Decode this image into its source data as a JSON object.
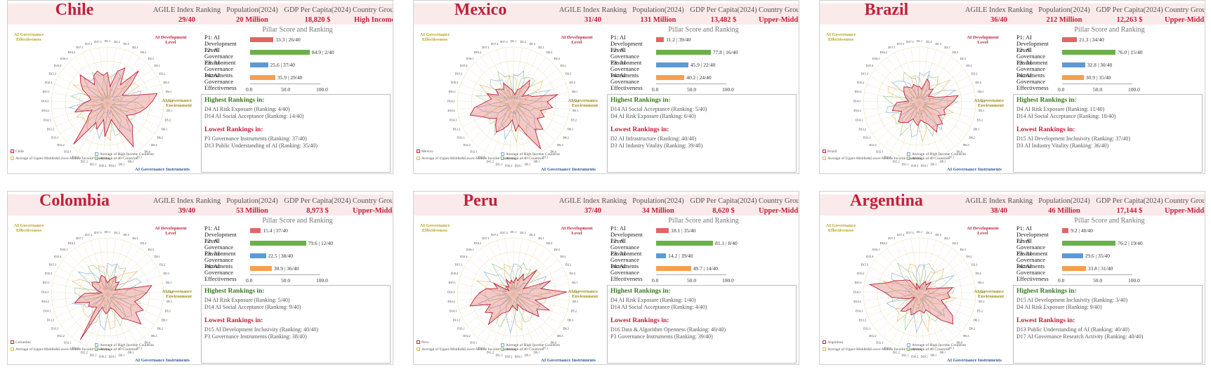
{
  "header_labels": [
    "AGILE Index Ranking",
    "Population(2024)",
    "GDP Per Capita(2024)",
    "Country Group"
  ],
  "pillar_title": "Pillar Score and Ranking",
  "pillar_labels": [
    "P1: AI Development Level",
    "P2: AI Governance Environment",
    "P3: AI Governance Instruments",
    "P4: AI Governance Effectiveness"
  ],
  "pillar_colors": [
    "#e06666",
    "#6ab04c",
    "#5b9bd5",
    "#f6a04d"
  ],
  "axis_ticks": [
    "0.0",
    "50.0",
    "100.0"
  ],
  "highest_heading": "Highest Rankings in:",
  "lowest_heading": "Lowest Rankings in:",
  "radar_quadrants": [
    "AI Development Level",
    "AI Governance Environment",
    "AI Governance Instruments",
    "AI Governance Effectiveness"
  ],
  "radar_axes": [
    "D1.1",
    "D1.2",
    "D1.3",
    "D2.1",
    "D2.2",
    "D2.3",
    "D3.1",
    "D3.2",
    "D3.3",
    "D4.1",
    "D4.2",
    "D5.1",
    "D5.2",
    "D6.1",
    "D6.2",
    "D6.3",
    "D6.4",
    "D7.1",
    "D8.1",
    "D9.1",
    "D10.1",
    "D10.2",
    "D11.1",
    "D11.2",
    "D11.3",
    "D12.1",
    "D12.2",
    "D13.1",
    "D13.2",
    "D14.1",
    "D14.2",
    "D14.3",
    "D15.1",
    "D15.2",
    "D15.3",
    "D15.4",
    "D16.1",
    "D16.2",
    "D17.1",
    "D17.2",
    "D17.3"
  ],
  "legend_labels": [
    "Average of High Income Countries",
    "Average of Upper-Middle&Lower-Middle Income Countries",
    "Average of 40 Countries"
  ],
  "chart_data": [
    {
      "type": "radar",
      "country": "Chile",
      "agile_rank": "29/40",
      "population": "20 Million",
      "gdp": "18,820 $",
      "group": "High Income",
      "pillars": [
        {
          "score": 33.3,
          "text": "33.3 | 26/40"
        },
        {
          "score": 84.9,
          "text": "84.9 | 2/40"
        },
        {
          "score": 25.6,
          "text": "25.6 | 37/40"
        },
        {
          "score": 35.9,
          "text": "35.9 | 29/40"
        }
      ],
      "highest": [
        "D4 AI Risk Exposure (Ranking: 4/40)",
        "D14 AI Social Acceptance (Ranking: 14/40)"
      ],
      "lowest": [
        "P3 Governance Instruments (Ranking: 37/40)",
        "D13 Public Understanding of AI (Ranking: 35/40)"
      ],
      "series": [
        {
          "values": [
            0.55,
            0.3,
            0.6,
            0.7,
            0.4,
            0.8,
            0.5,
            0.3,
            0.4,
            0.9,
            0.8,
            0.7,
            0.6,
            0.5,
            0.4,
            0.6,
            0.7,
            0.9,
            0.5,
            0.3,
            0.4,
            0.6,
            0.3,
            0.5,
            0.4,
            0.95,
            0.5,
            0.4,
            0.3,
            0.6,
            0.5,
            0.4,
            0.3,
            0.35,
            0.5,
            0.6,
            0.7,
            0.4,
            0.55,
            0.6,
            0.5
          ]
        }
      ]
    },
    {
      "type": "radar",
      "country": "Mexico",
      "agile_rank": "31/40",
      "population": "131 Million",
      "gdp": "13,482 $",
      "group": "Upper-Middle Income",
      "pillars": [
        {
          "score": 11.2,
          "text": "11.2 | 39/40"
        },
        {
          "score": 77.8,
          "text": "77.8 | 16/40"
        },
        {
          "score": 45.9,
          "text": "45.9 | 22/40"
        },
        {
          "score": 40.2,
          "text": "40.2 | 24/40"
        }
      ],
      "highest": [
        "D14 AI Social Acceptance (Ranking: 5/40)",
        "D4 AI Risk Exposure (Ranking: 6/40)"
      ],
      "lowest": [
        "D2 AI Infrastructure (Ranking: 40/40)",
        "D3 AI Industry Vitality (Ranking: 39/40)"
      ],
      "series": [
        {
          "values": [
            0.2,
            0.15,
            0.25,
            0.3,
            0.5,
            0.4,
            0.2,
            0.3,
            0.35,
            0.8,
            0.6,
            0.7,
            0.5,
            0.6,
            0.5,
            0.7,
            0.6,
            0.95,
            0.6,
            0.4,
            0.5,
            0.3,
            0.4,
            0.5,
            0.6,
            0.5,
            0.4,
            0.5,
            0.6,
            0.8,
            0.7,
            0.5,
            0.4,
            0.5,
            0.3,
            0.4,
            0.35,
            0.3,
            0.4,
            0.3,
            0.25
          ]
        }
      ]
    },
    {
      "type": "radar",
      "country": "Brazil",
      "agile_rank": "36/40",
      "population": "212 Million",
      "gdp": "12,263 $",
      "group": "Upper-Middle Income",
      "pillars": [
        {
          "score": 21.3,
          "text": "21.3 | 34/40"
        },
        {
          "score": 76.0,
          "text": "76.0 | 15/40"
        },
        {
          "score": 32.8,
          "text": "32.8 | 30/40"
        },
        {
          "score": 30.9,
          "text": "30.9 | 35/40"
        }
      ],
      "highest": [
        "D4 AI Risk Exposure (Ranking: 11/40)",
        "D14 AI Social Acceptance (Ranking: 18/40)"
      ],
      "lowest": [
        "D15 AI Development Inclusivity (Ranking: 37/40)",
        "D3 AI Industry Vitality (Ranking: 36/40)"
      ],
      "series": [
        {
          "values": [
            0.3,
            0.25,
            0.45,
            0.4,
            0.3,
            0.35,
            0.2,
            0.25,
            0.3,
            0.7,
            0.6,
            0.5,
            0.45,
            0.5,
            0.4,
            0.55,
            0.5,
            0.6,
            0.4,
            0.35,
            0.3,
            0.4,
            0.35,
            0.3,
            0.4,
            0.45,
            0.5,
            0.4,
            0.35,
            0.5,
            0.45,
            0.4,
            0.2,
            0.25,
            0.3,
            0.35,
            0.4,
            0.35,
            0.3,
            0.35,
            0.3
          ]
        }
      ]
    },
    {
      "type": "radar",
      "country": "Colombia",
      "agile_rank": "39/40",
      "population": "53 Million",
      "gdp": "8,973 $",
      "group": "Upper-Middle Income",
      "pillars": [
        {
          "score": 15.4,
          "text": "15.4 | 37/40"
        },
        {
          "score": 79.6,
          "text": "79.6 | 12/40"
        },
        {
          "score": 22.5,
          "text": "22.5 | 38/40"
        },
        {
          "score": 30.9,
          "text": "30.9 | 36/40"
        }
      ],
      "highest": [
        "D4 AI Risk Exposure (Ranking: 5/40)",
        "D14 AI Social Acceptance (Ranking: 9/40)"
      ],
      "lowest": [
        "D15 AI Development Inclusivity (Ranking: 40/40)",
        "P3 Governance Instruments (Ranking: 38/40)"
      ],
      "series": [
        {
          "values": [
            0.2,
            0.25,
            0.3,
            0.35,
            0.25,
            0.3,
            0.2,
            0.15,
            0.25,
            0.8,
            0.7,
            0.6,
            0.5,
            0.7,
            0.6,
            0.8,
            0.6,
            0.5,
            0.3,
            0.25,
            0.3,
            0.35,
            0.3,
            0.25,
            0.95,
            0.3,
            0.35,
            0.4,
            0.35,
            0.6,
            0.5,
            0.4,
            0.1,
            0.2,
            0.3,
            0.35,
            0.3,
            0.25,
            0.3,
            0.35,
            0.3
          ]
        }
      ]
    },
    {
      "type": "radar",
      "country": "Peru",
      "agile_rank": "37/40",
      "population": "34 Million",
      "gdp": "8,620 $",
      "group": "Upper-Middle Income",
      "pillars": [
        {
          "score": 18.1,
          "text": "18.1 | 35/40"
        },
        {
          "score": 81.1,
          "text": "81.1 | 8/40"
        },
        {
          "score": 14.2,
          "text": "14.2 | 39/40"
        },
        {
          "score": 49.7,
          "text": "49.7 | 14/40"
        }
      ],
      "highest": [
        "D4 AI Risk Exposure (Ranking: 1/40)",
        "D14 AI Social Acceptance (Ranking: 4/40)"
      ],
      "lowest": [
        "D16 Data & Algorithm Openness (Ranking: 40/40)",
        "P3 Governance Instruments (Ranking: 39/40)"
      ],
      "series": [
        {
          "values": [
            0.2,
            0.3,
            0.25,
            0.4,
            0.3,
            0.6,
            0.3,
            0.2,
            0.7,
            0.5,
            0.95,
            0.6,
            0.4,
            0.7,
            0.5,
            0.6,
            0.4,
            0.3,
            0.2,
            0.3,
            0.25,
            0.2,
            0.3,
            0.35,
            0.4,
            0.7,
            0.5,
            0.6,
            0.45,
            0.8,
            0.7,
            0.6,
            0.5,
            0.3,
            0.4,
            0.1,
            0.2,
            0.15,
            0.3,
            0.2,
            0.25
          ]
        }
      ]
    },
    {
      "type": "radar",
      "country": "Argentina",
      "agile_rank": "38/40",
      "population": "46 Million",
      "gdp": "17,144 $",
      "group": "Upper-Middle Income",
      "pillars": [
        {
          "score": 9.2,
          "text": "9.2 | 40/40"
        },
        {
          "score": 76.2,
          "text": "76.2 | 19/40"
        },
        {
          "score": 29.6,
          "text": "29.6 | 35/40"
        },
        {
          "score": 33.8,
          "text": "33.8 | 31/40"
        }
      ],
      "highest": [
        "D15 AI Development Inclusivity (Ranking: 3/40)",
        "D4 AI Risk Exposure (Ranking: 9/40)"
      ],
      "lowest": [
        "D13 Public Understanding of AI (Ranking: 40/40)",
        "D17 AI Governance Research Activity (Ranking: 40/40)"
      ],
      "series": [
        {
          "values": [
            0.1,
            0.15,
            0.2,
            0.25,
            0.2,
            0.3,
            0.15,
            0.2,
            0.3,
            0.6,
            0.5,
            0.55,
            0.4,
            0.5,
            0.7,
            0.8,
            0.6,
            0.4,
            0.3,
            0.35,
            0.3,
            0.3,
            0.35,
            0.4,
            0.3,
            0.4,
            0.45,
            0.1,
            0.2,
            0.3,
            0.5,
            0.6,
            0.9,
            0.6,
            0.5,
            0.4,
            0.35,
            0.3,
            0.1,
            0.2,
            0.15
          ]
        }
      ]
    }
  ]
}
